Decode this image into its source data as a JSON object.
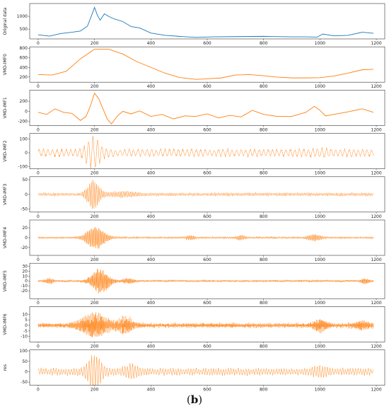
{
  "caption": {
    "open": "(",
    "letter": "b",
    "close": ")"
  },
  "colors": {
    "original": "#1f77b4",
    "imf": "#ff7f0e"
  },
  "chart_data": [
    {
      "type": "line",
      "ylabel": "Original data",
      "color": "#1f77b4",
      "xlim": [
        -30,
        1230
      ],
      "ylim": [
        120,
        1500
      ],
      "xticks": [
        0,
        200,
        400,
        600,
        800,
        1000,
        1200
      ],
      "yticks": [
        500,
        1000
      ],
      "x": [
        0,
        40,
        80,
        120,
        150,
        175,
        190,
        200,
        210,
        220,
        235,
        250,
        270,
        300,
        330,
        360,
        400,
        450,
        500,
        560,
        620,
        700,
        800,
        900,
        950,
        990,
        1010,
        1050,
        1100,
        1150,
        1190
      ],
      "y": [
        280,
        230,
        330,
        380,
        430,
        620,
        1050,
        1350,
        1050,
        850,
        1100,
        1000,
        900,
        800,
        600,
        550,
        350,
        260,
        220,
        180,
        200,
        210,
        220,
        200,
        200,
        190,
        310,
        240,
        260,
        380,
        340
      ]
    },
    {
      "type": "line",
      "ylabel": "VMD-IMF0",
      "color": "#ff7f0e",
      "xlim": [
        -30,
        1230
      ],
      "ylim": [
        90,
        830
      ],
      "xticks": [
        0,
        200,
        400,
        600,
        800,
        1000,
        1200
      ],
      "yticks": [
        200,
        400,
        600,
        800
      ],
      "x": [
        0,
        50,
        100,
        150,
        200,
        250,
        300,
        350,
        400,
        450,
        500,
        560,
        600,
        650,
        700,
        750,
        800,
        850,
        900,
        950,
        1000,
        1050,
        1100,
        1150,
        1190
      ],
      "y": [
        250,
        240,
        320,
        580,
        780,
        780,
        680,
        520,
        400,
        280,
        190,
        150,
        160,
        180,
        240,
        250,
        225,
        195,
        180,
        180,
        185,
        220,
        280,
        350,
        360
      ]
    },
    {
      "type": "line",
      "ylabel": "VMD-IMF1",
      "color": "#ff7f0e",
      "xlim": [
        -30,
        1230
      ],
      "ylim": [
        -280,
        420
      ],
      "xticks": [
        0,
        200,
        400,
        600,
        800,
        1000,
        1200
      ],
      "yticks": [
        -200,
        0,
        200
      ],
      "x": [
        0,
        30,
        60,
        90,
        120,
        150,
        170,
        185,
        200,
        215,
        230,
        245,
        260,
        280,
        300,
        330,
        360,
        400,
        440,
        480,
        520,
        560,
        600,
        640,
        680,
        720,
        760,
        800,
        850,
        900,
        950,
        980,
        1000,
        1020,
        1050,
        1100,
        1150,
        1190
      ],
      "y": [
        -20,
        -60,
        50,
        -20,
        -40,
        -180,
        -100,
        100,
        360,
        250,
        50,
        -150,
        -250,
        -100,
        0,
        -50,
        10,
        -100,
        -60,
        -150,
        -90,
        -100,
        -50,
        -130,
        -80,
        -110,
        20,
        -60,
        -100,
        -100,
        -20,
        100,
        20,
        -90,
        -60,
        -10,
        50,
        -20
      ]
    },
    {
      "type": "line",
      "ylabel": "VMD-IMF2",
      "color": "#ff7f0e",
      "xlim": [
        -30,
        1230
      ],
      "ylim": [
        -115,
        140
      ],
      "xticks": [
        0,
        200,
        400,
        600,
        800,
        1000,
        1200
      ],
      "yticks": [
        -100,
        0,
        100
      ],
      "base": 25,
      "peak": 130,
      "period": 16,
      "bursts": [
        [
          195,
          28,
          105
        ],
        [
          1000,
          40,
          10
        ]
      ],
      "seed": 3
    },
    {
      "type": "line",
      "ylabel": "VMD-IMF3",
      "color": "#ff7f0e",
      "xlim": [
        -30,
        1230
      ],
      "ylim": [
        -60,
        60
      ],
      "xticks": [
        0,
        200,
        400,
        600,
        800,
        1000,
        1200
      ],
      "yticks": [
        -50,
        0,
        50
      ],
      "base": 5,
      "peak": 52,
      "period": 6,
      "bursts": [
        [
          195,
          25,
          47
        ],
        [
          300,
          60,
          6
        ]
      ],
      "seed": 7
    },
    {
      "type": "line",
      "ylabel": "VMD-IMF4",
      "color": "#ff7f0e",
      "xlim": [
        -30,
        1230
      ],
      "ylim": [
        -36,
        36
      ],
      "xticks": [
        0,
        200,
        400,
        600,
        800,
        1000,
        1200
      ],
      "yticks": [
        -20,
        0,
        20
      ],
      "base": 2,
      "peak": 30,
      "period": 4,
      "bursts": [
        [
          205,
          35,
          26
        ],
        [
          980,
          25,
          6
        ],
        [
          540,
          15,
          4
        ],
        [
          720,
          15,
          4
        ]
      ],
      "seed": 11
    },
    {
      "type": "line",
      "ylabel": "VMD-IMF5",
      "color": "#ff7f0e",
      "xlim": [
        -30,
        1230
      ],
      "ylim": [
        -36,
        36
      ],
      "xticks": [
        0,
        200,
        400,
        600,
        800,
        1000,
        1200
      ],
      "yticks": [
        -20,
        -10,
        0,
        10,
        20,
        30
      ],
      "base": 2,
      "peak": 30,
      "period": 3,
      "bursts": [
        [
          220,
          35,
          26
        ],
        [
          40,
          15,
          5
        ],
        [
          1160,
          15,
          5
        ],
        [
          320,
          20,
          5
        ]
      ],
      "seed": 19
    },
    {
      "type": "line",
      "ylabel": "VMD-IMF6",
      "color": "#ff7f0e",
      "xlim": [
        -30,
        1230
      ],
      "ylim": [
        -15,
        17
      ],
      "xticks": [
        0,
        200,
        400,
        600,
        800,
        1000,
        1200
      ],
      "yticks": [
        -10,
        -5,
        0,
        5,
        10
      ],
      "base": 2,
      "peak": 15,
      "period": 2.5,
      "bursts": [
        [
          200,
          55,
          11
        ],
        [
          310,
          30,
          7
        ],
        [
          1000,
          25,
          5
        ],
        [
          1150,
          30,
          3
        ]
      ],
      "seed": 23
    },
    {
      "type": "line",
      "ylabel": "res",
      "color": "#ff7f0e",
      "xlim": [
        -30,
        1230
      ],
      "ylim": [
        -65,
        105
      ],
      "xticks": [
        0,
        200,
        400,
        600,
        800,
        1000,
        1200
      ],
      "yticks": [
        -50,
        0,
        50,
        100
      ],
      "base": 15,
      "peak": 95,
      "period": 9,
      "bursts": [
        [
          200,
          30,
          70
        ],
        [
          330,
          30,
          25
        ],
        [
          1000,
          30,
          15
        ]
      ],
      "seed": 31
    }
  ]
}
